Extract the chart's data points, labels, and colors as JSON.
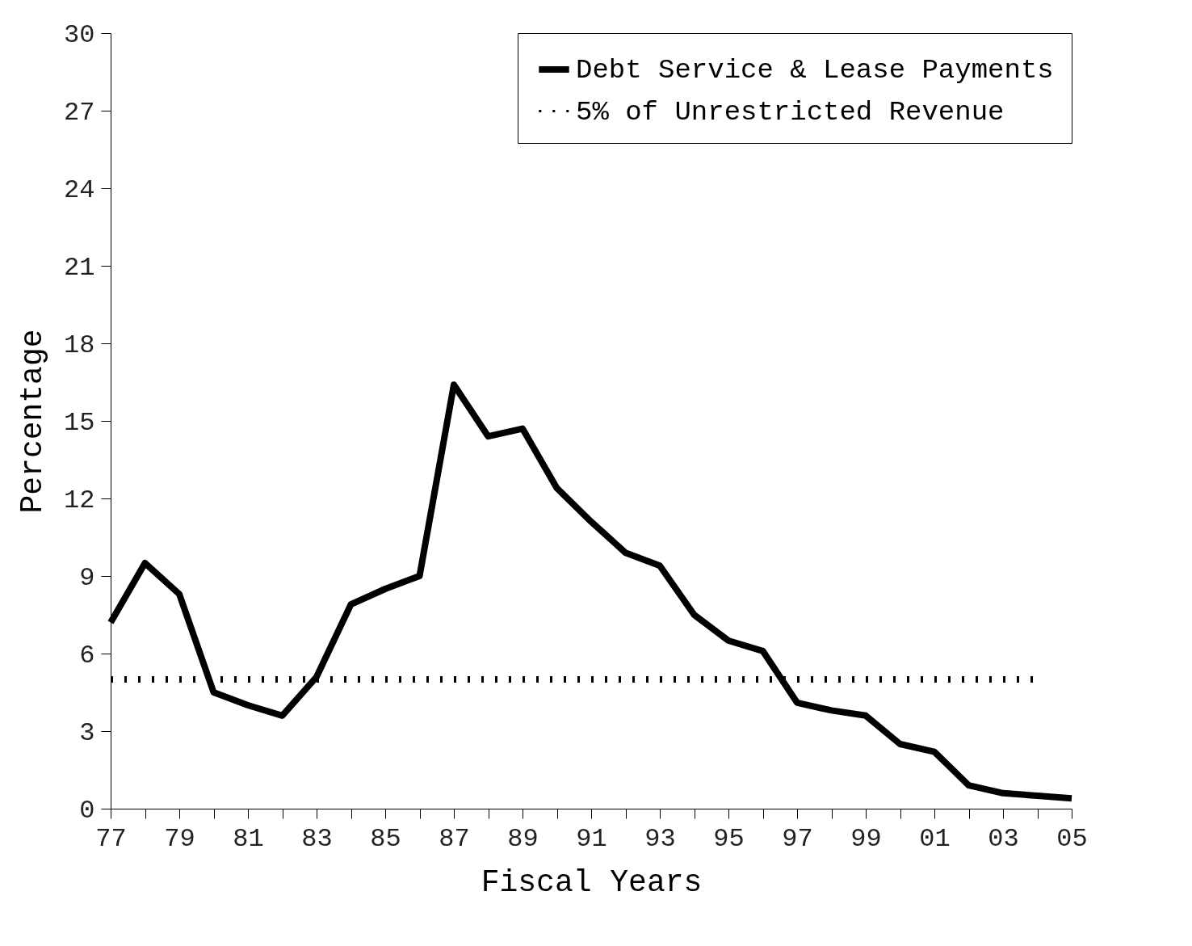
{
  "chart_data": {
    "type": "line",
    "xlabel": "Fiscal Years",
    "ylabel": "Percentage",
    "categories": [
      "77",
      null,
      "79",
      null,
      "81",
      null,
      "83",
      null,
      "85",
      null,
      "87",
      null,
      "89",
      null,
      "91",
      null,
      "93",
      null,
      "95",
      null,
      "97",
      null,
      "99",
      null,
      "01",
      null,
      "03",
      null,
      "05"
    ],
    "series": [
      {
        "name": "Debt Service & Lease Payments",
        "color": "#000000",
        "line_style": "solid",
        "values": [
          7.2,
          9.5,
          8.3,
          4.5,
          4.0,
          3.6,
          5.1,
          7.9,
          8.5,
          9.0,
          16.4,
          14.4,
          14.7,
          12.4,
          11.1,
          9.9,
          9.4,
          7.5,
          6.5,
          6.1,
          4.1,
          3.8,
          3.6,
          2.5,
          2.2,
          0.9,
          0.6,
          0.5,
          0.4
        ]
      },
      {
        "name": "5% of Unrestricted Revenue",
        "color": "#000000",
        "line_style": "dotted",
        "values": [
          5,
          5,
          5,
          5,
          5,
          5,
          5,
          5,
          5,
          5,
          5,
          5,
          5,
          5,
          5,
          5,
          5,
          5,
          5,
          5,
          5,
          5,
          5,
          5,
          5,
          5,
          5,
          5,
          null
        ]
      }
    ],
    "ylim": [
      0,
      30
    ],
    "yticks": [
      0,
      3,
      6,
      9,
      12,
      15,
      18,
      21,
      24,
      27,
      30
    ],
    "grid": false,
    "legend": "top right"
  }
}
